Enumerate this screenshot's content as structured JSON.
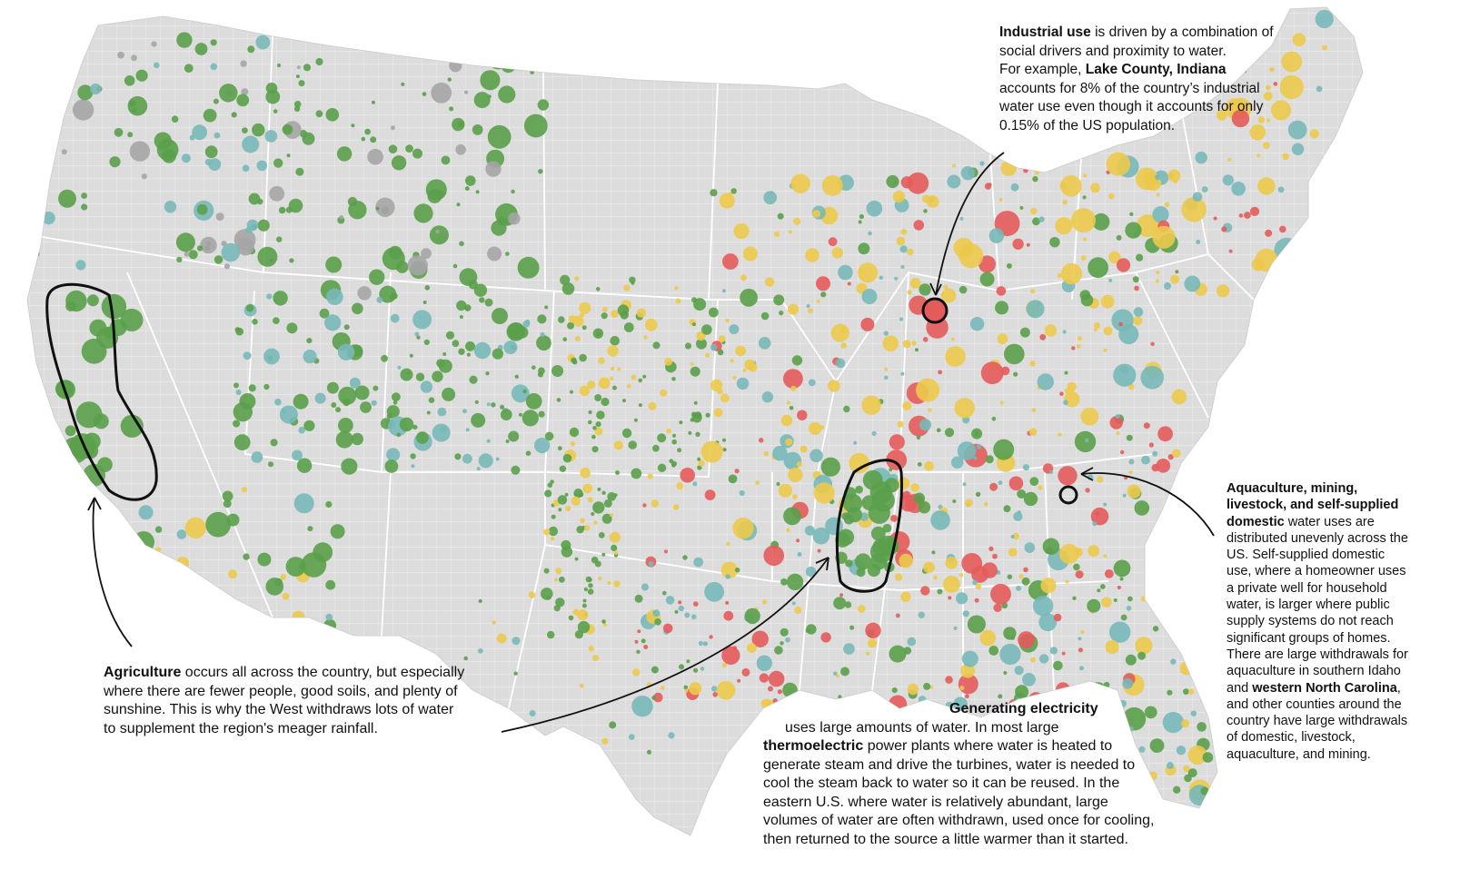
{
  "annotations": {
    "industrial": {
      "title": "Industrial use",
      "text1": " is driven by a combination of social drivers and proximity to water.",
      "text2": "For example, ",
      "place": "Lake County, Indiana",
      "text3": " accounts for 8% of the country’s industrial water use even though it accounts for only 0.15% of the US population."
    },
    "aquaculture": {
      "title": "Aquaculture, mining, livestock, and self-supplied domestic",
      "text1": " water uses are distributed unevenly across the US. Self-supplied domestic use, where a homeowner uses a private well for household water, is larger where public supply systems do not reach significant groups of homes. There are large withdrawals for aquaculture in southern Idaho and ",
      "place": "western North Carolina",
      "text2": ", and other counties around the country have large withdrawals of domestic, livestock, aquaculture, and mining."
    },
    "agriculture": {
      "title": "Agriculture",
      "text": " occurs all across the country, but especially where there are fewer people, good soils, and plenty of sunshine. This is why the West withdraws lots of water to supplement the region's meager rainfall."
    },
    "electricity": {
      "title": "Generating electricity",
      "text1": " uses large amounts of water. In most large ",
      "bold": "thermoelectric",
      "text2": " power plants where water is heated to generate steam and drive the turbines, water is needed to cool the steam back to water so it can be reused. In the eastern U.S. where water is relatively abundant, large volumes of water are often withdrawn, used once for cooling, then returned to the source a little warmer than it started."
    }
  },
  "colors": {
    "land": "#dcdcdc",
    "county_border": "#efefef",
    "state_border": "#ffffff",
    "agriculture": "#5aa04a",
    "thermoelectric": "#ecc94b",
    "industrial": "#e45b5b",
    "public_supply": "#78b8b8",
    "other": "#a5a5a5",
    "ink": "#111111"
  }
}
